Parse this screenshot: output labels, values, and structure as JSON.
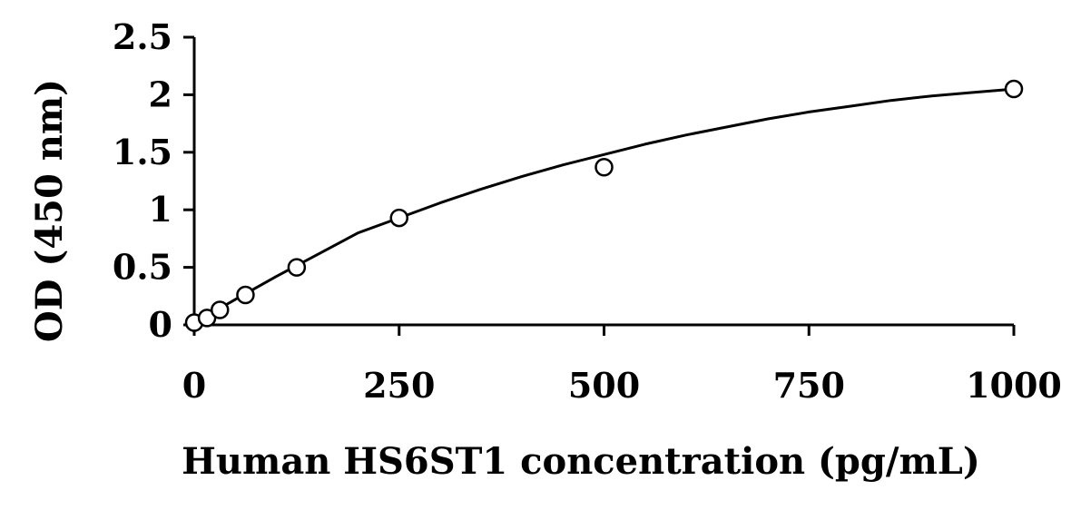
{
  "chart_data": {
    "type": "scatter",
    "title": "",
    "xlabel": "Human HS6ST1 concentration (pg/mL)",
    "ylabel": "OD (450 nm)",
    "xlim": [
      0,
      1000
    ],
    "ylim": [
      0,
      2.5
    ],
    "x_ticks": [
      0,
      250,
      500,
      750,
      1000
    ],
    "x_tick_labels": [
      "0",
      "250",
      "500",
      "750",
      "1000"
    ],
    "y_ticks": [
      0,
      0.5,
      1,
      1.5,
      2,
      2.5
    ],
    "y_tick_labels": [
      "0",
      "0.5",
      "1",
      "1.5",
      "2",
      "2.5"
    ],
    "grid": false,
    "legend": "none",
    "series": [
      {
        "kind": "points",
        "marker": "open-circle",
        "x": [
          0,
          15.6,
          31.25,
          62.5,
          125,
          250,
          500,
          1000
        ],
        "y": [
          0.02,
          0.06,
          0.13,
          0.26,
          0.5,
          0.93,
          1.37,
          2.05
        ]
      },
      {
        "kind": "fit-curve",
        "x": [
          0,
          50,
          100,
          150,
          200,
          250,
          300,
          350,
          400,
          450,
          500,
          550,
          600,
          650,
          700,
          750,
          800,
          850,
          900,
          950,
          1000
        ],
        "y": [
          0.02,
          0.22,
          0.42,
          0.61,
          0.8,
          0.93,
          1.06,
          1.18,
          1.29,
          1.39,
          1.48,
          1.57,
          1.65,
          1.72,
          1.79,
          1.85,
          1.9,
          1.95,
          1.99,
          2.02,
          2.05
        ]
      }
    ],
    "colors": {
      "axis": "#000000",
      "marker_stroke": "#000000",
      "marker_fill": "#ffffff",
      "curve": "#000000"
    }
  }
}
